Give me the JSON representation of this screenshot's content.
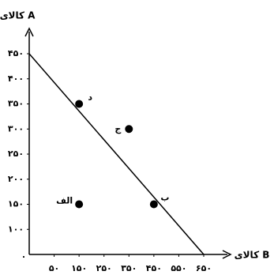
{
  "chart_data": {
    "type": "scatter",
    "x_label": "کالای B",
    "y_label": "کالای A",
    "origin_label": "۰",
    "xlim": [
      -50,
      650
    ],
    "ylim": [
      50,
      450
    ],
    "xticks": [
      {
        "value": 50,
        "label": "۵۰"
      },
      {
        "value": 150,
        "label": "۱۵۰"
      },
      {
        "value": 250,
        "label": "۲۵۰"
      },
      {
        "value": 350,
        "label": "۳۵۰"
      },
      {
        "value": 450,
        "label": "۴۵۰"
      },
      {
        "value": 550,
        "label": "۵۵۰"
      },
      {
        "value": 650,
        "label": "۶۵۰"
      }
    ],
    "yticks": [
      {
        "value": 100,
        "label": "۱۰۰"
      },
      {
        "value": 150,
        "label": "۱۵۰"
      },
      {
        "value": 200,
        "label": "۲۰۰"
      },
      {
        "value": 250,
        "label": "۲۵۰"
      },
      {
        "value": 300,
        "label": "۳۰۰"
      },
      {
        "value": 350,
        "label": "۳۵۰"
      },
      {
        "value": 400,
        "label": "۴۰۰"
      },
      {
        "value": 450,
        "label": "۴۵۰"
      }
    ],
    "line": {
      "x": [
        -50,
        650
      ],
      "y": [
        450,
        50
      ],
      "color": "#000000"
    },
    "points": {
      "labels": [
        "د",
        "ج",
        "ب",
        "الف"
      ],
      "x": [
        150,
        350,
        450,
        150
      ],
      "y": [
        350,
        300,
        150,
        150
      ],
      "color": "#000000"
    }
  }
}
